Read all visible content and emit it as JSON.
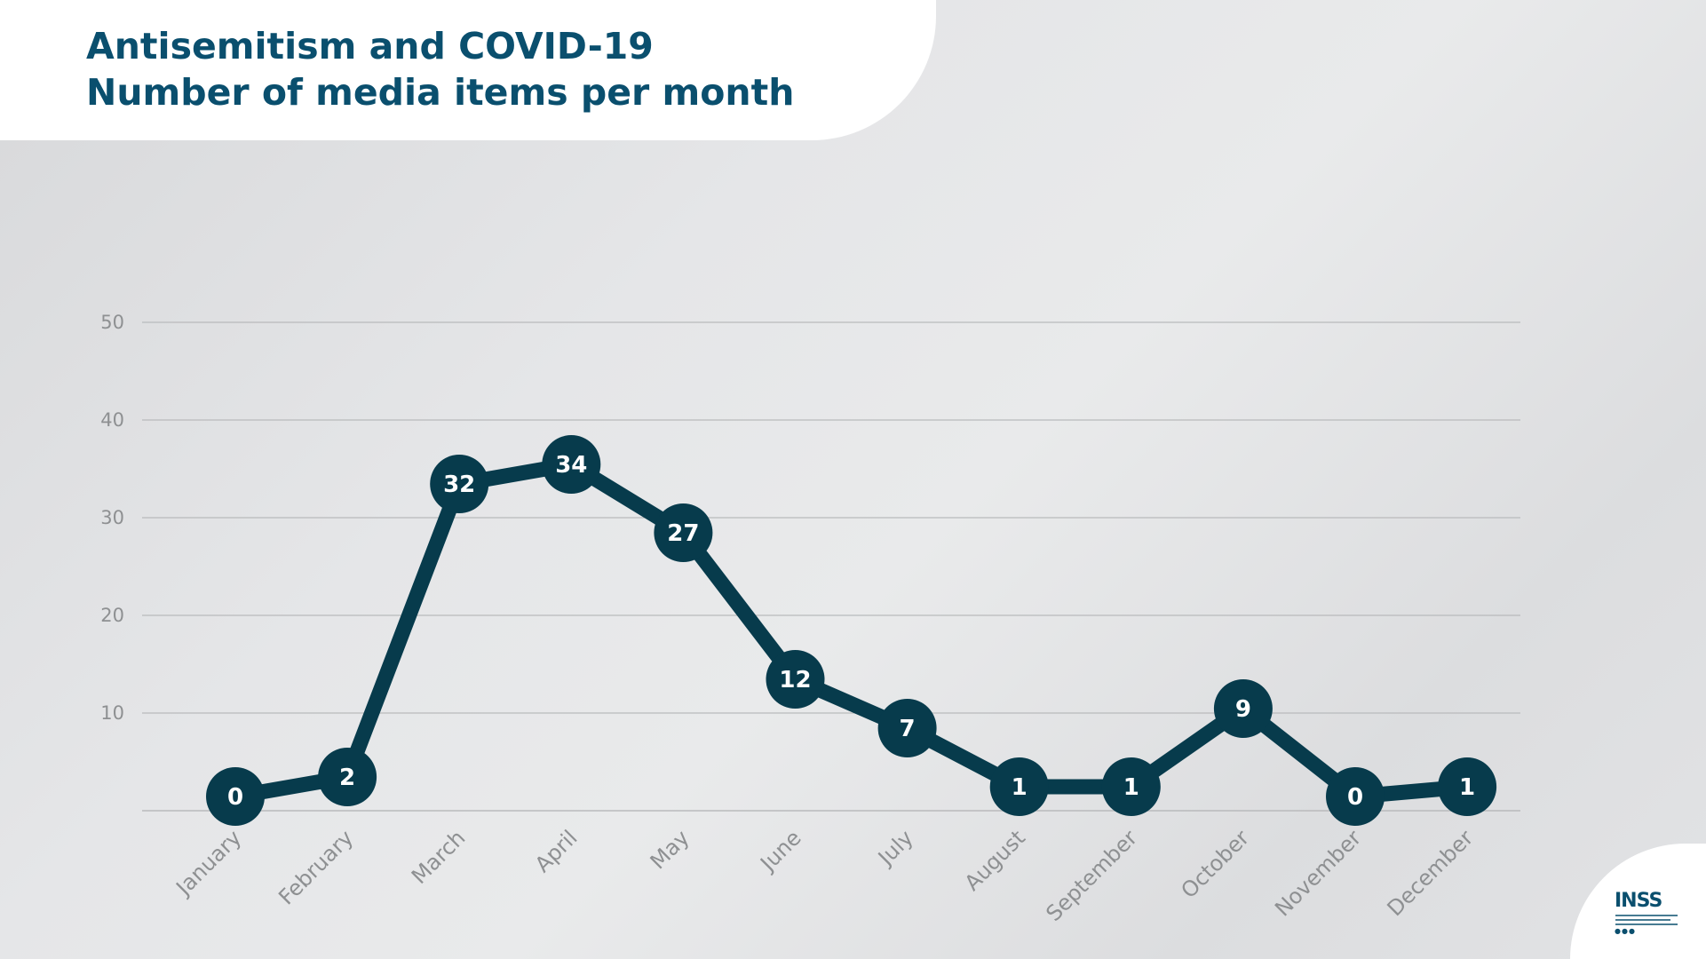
{
  "chart_data": {
    "type": "line",
    "title": "Antisemitism and COVID-19",
    "subtitle": "Number of media items per month",
    "categories": [
      "January",
      "February",
      "March",
      "April",
      "May",
      "June",
      "July",
      "August",
      "September",
      "October",
      "November",
      "December"
    ],
    "values": [
      0,
      2,
      32,
      34,
      27,
      12,
      7,
      1,
      1,
      9,
      0,
      1
    ],
    "yticks": [
      "10",
      "20",
      "30",
      "40",
      "50"
    ],
    "ylim": [
      0,
      50
    ],
    "grid": true,
    "legend": "none",
    "colors": {
      "line": "#073b4c",
      "marker": "#073b4c",
      "marker_text": "#ffffff",
      "grid": "#b9babc",
      "axis_text": "#8e9092",
      "title": "#0a4f6e"
    }
  },
  "logo": {
    "text": "INSS",
    "name": "inss-logo"
  }
}
